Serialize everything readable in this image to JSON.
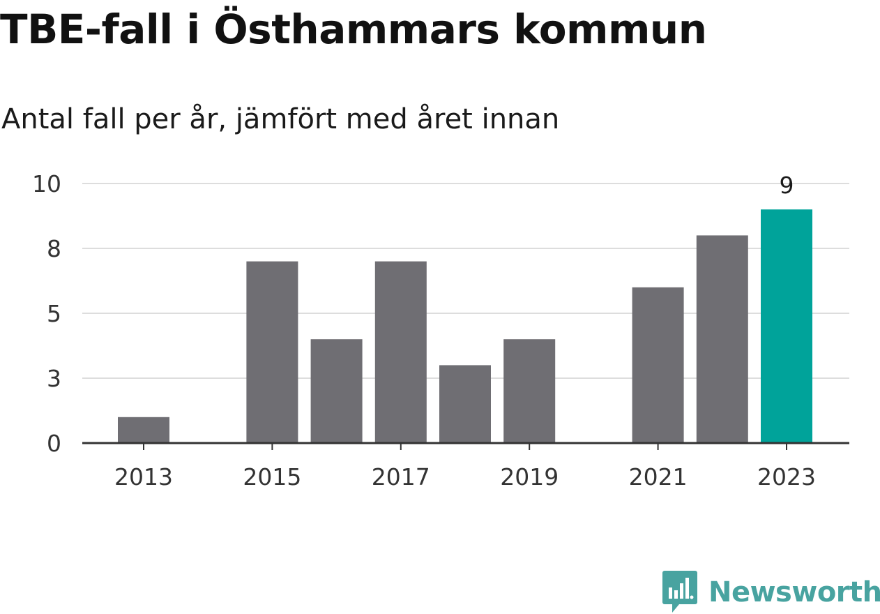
{
  "chart_data": {
    "type": "bar",
    "title": "TBE-fall i Östhammars kommun",
    "subtitle": "Antal fall per år, jämfört med året innan",
    "categories": [
      "2013",
      "2014",
      "2015",
      "2016",
      "2017",
      "2018",
      "2019",
      "2020",
      "2021",
      "2022",
      "2023"
    ],
    "values": [
      1,
      0,
      7,
      4,
      7,
      3,
      4,
      0,
      6,
      8,
      9
    ],
    "highlight_index": 10,
    "highlight_label": "9",
    "x_tick_labels": [
      "2013",
      "2015",
      "2017",
      "2019",
      "2021",
      "2023"
    ],
    "y_ticks": [
      0,
      2.5,
      5,
      7.5,
      10
    ],
    "y_tick_labels": [
      "0",
      "3",
      "5",
      "8",
      "10"
    ],
    "ylim": [
      0,
      10
    ],
    "grid": true,
    "colors": {
      "bar": "#6f6e73",
      "highlight": "#00a39a",
      "grid": "#dddddd",
      "axis": "#333333"
    }
  },
  "brand": {
    "name": "Newsworthy",
    "icon": "newsworthy-logo-icon",
    "color": "#48a3a0"
  }
}
